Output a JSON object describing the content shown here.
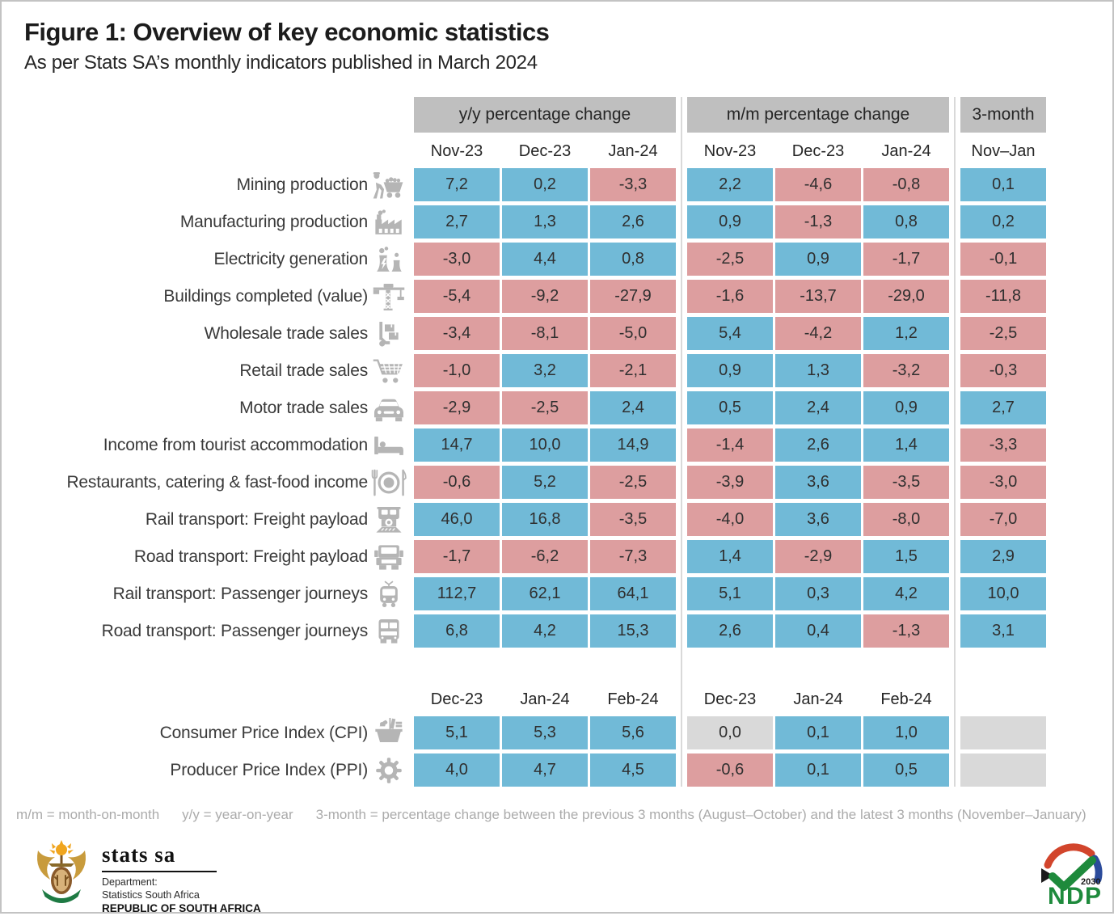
{
  "title": "Figure 1: Overview of key economic statistics",
  "subtitle": "As per Stats SA’s monthly indicators published in March 2024",
  "colors": {
    "positive": "#71bad7",
    "negative": "#dd9e9f",
    "neutral": "#d9d9d9",
    "header_bg": "#bfbfbf",
    "icon_gray": "#b5b5b5"
  },
  "groups": {
    "yoy": "y/y percentage change",
    "mom": "m/m percentage change",
    "three_month": "3-month"
  },
  "chart_data": {
    "type": "table",
    "title": "Figure 1: Overview of key economic statistics",
    "subtitle": "As per Stats SA’s monthly indicators published in March 2024",
    "column_groups": [
      "y/y percentage change",
      "m/m percentage change",
      "3-month"
    ],
    "sections": [
      {
        "yoy_months": [
          "Nov-23",
          "Dec-23",
          "Jan-24"
        ],
        "mom_months": [
          "Nov-23",
          "Dec-23",
          "Jan-24"
        ],
        "three_month_label": "Nov–Jan",
        "rows": [
          {
            "label": "Mining production",
            "icon": "mining-cart-icon",
            "yoy": [
              "7,2",
              "0,2",
              "-3,3"
            ],
            "mom": [
              "2,2",
              "-4,6",
              "-0,8"
            ],
            "three_month": "0,1"
          },
          {
            "label": "Manufacturing production",
            "icon": "factory-icon",
            "yoy": [
              "2,7",
              "1,3",
              "2,6"
            ],
            "mom": [
              "0,9",
              "-1,3",
              "0,8"
            ],
            "three_month": "0,2"
          },
          {
            "label": "Electricity generation",
            "icon": "power-plant-icon",
            "yoy": [
              "-3,0",
              "4,4",
              "0,8"
            ],
            "mom": [
              "-2,5",
              "0,9",
              "-1,7"
            ],
            "three_month": "-0,1"
          },
          {
            "label": "Buildings completed (value)",
            "icon": "crane-icon",
            "yoy": [
              "-5,4",
              "-9,2",
              "-27,9"
            ],
            "mom": [
              "-1,6",
              "-13,7",
              "-29,0"
            ],
            "three_month": "-11,8"
          },
          {
            "label": "Wholesale trade sales",
            "icon": "hand-truck-icon",
            "yoy": [
              "-3,4",
              "-8,1",
              "-5,0"
            ],
            "mom": [
              "5,4",
              "-4,2",
              "1,2"
            ],
            "three_month": "-2,5"
          },
          {
            "label": "Retail trade sales",
            "icon": "shopping-cart-icon",
            "yoy": [
              "-1,0",
              "3,2",
              "-2,1"
            ],
            "mom": [
              "0,9",
              "1,3",
              "-3,2"
            ],
            "three_month": "-0,3"
          },
          {
            "label": "Motor trade sales",
            "icon": "car-icon",
            "yoy": [
              "-2,9",
              "-2,5",
              "2,4"
            ],
            "mom": [
              "0,5",
              "2,4",
              "0,9"
            ],
            "three_month": "2,7"
          },
          {
            "label": "Income from tourist accommodation",
            "icon": "bed-icon",
            "yoy": [
              "14,7",
              "10,0",
              "14,9"
            ],
            "mom": [
              "-1,4",
              "2,6",
              "1,4"
            ],
            "three_month": "-3,3"
          },
          {
            "label": "Restaurants, catering & fast-food income",
            "icon": "plate-icon",
            "yoy": [
              "-0,6",
              "5,2",
              "-2,5"
            ],
            "mom": [
              "-3,9",
              "3,6",
              "-3,5"
            ],
            "three_month": "-3,0"
          },
          {
            "label": "Rail transport: Freight payload",
            "icon": "locomotive-icon",
            "yoy": [
              "46,0",
              "16,8",
              "-3,5"
            ],
            "mom": [
              "-4,0",
              "3,6",
              "-8,0"
            ],
            "three_month": "-7,0"
          },
          {
            "label": "Road transport: Freight payload",
            "icon": "truck-icon",
            "yoy": [
              "-1,7",
              "-6,2",
              "-7,3"
            ],
            "mom": [
              "1,4",
              "-2,9",
              "1,5"
            ],
            "three_month": "2,9"
          },
          {
            "label": "Rail transport: Passenger journeys",
            "icon": "tram-icon",
            "yoy": [
              "112,7",
              "62,1",
              "64,1"
            ],
            "mom": [
              "5,1",
              "0,3",
              "4,2"
            ],
            "three_month": "10,0"
          },
          {
            "label": "Road transport: Passenger journeys",
            "icon": "bus-icon",
            "yoy": [
              "6,8",
              "4,2",
              "15,3"
            ],
            "mom": [
              "2,6",
              "0,4",
              "-1,3"
            ],
            "three_month": "3,1"
          }
        ]
      },
      {
        "yoy_months": [
          "Dec-23",
          "Jan-24",
          "Feb-24"
        ],
        "mom_months": [
          "Dec-23",
          "Jan-24",
          "Feb-24"
        ],
        "three_month_label": null,
        "rows": [
          {
            "label": "Consumer Price Index (CPI)",
            "icon": "basket-icon",
            "yoy": [
              "5,1",
              "5,3",
              "5,6"
            ],
            "mom": [
              "0,0",
              "0,1",
              "1,0"
            ],
            "three_month": null
          },
          {
            "label": "Producer Price Index (PPI)",
            "icon": "gear-icon",
            "yoy": [
              "4,0",
              "4,7",
              "4,5"
            ],
            "mom": [
              "-0,6",
              "0,1",
              "0,5"
            ],
            "three_month": null
          }
        ]
      }
    ],
    "color_coding": "blue = positive, pink = negative, gray = zero or not applicable"
  },
  "footnote_parts": [
    "m/m = month-on-month",
    "y/y = year-on-year",
    "3-month = percentage change between the previous 3 months (August–October) and the latest 3 months (November–January)"
  ],
  "footer": {
    "statssa": {
      "name": "stats sa",
      "dept_line1": "Department:",
      "dept_line2": "Statistics South Africa",
      "country": "REPUBLIC OF SOUTH AFRICA"
    },
    "ndp": {
      "label": "NDP",
      "year": "2030"
    }
  }
}
